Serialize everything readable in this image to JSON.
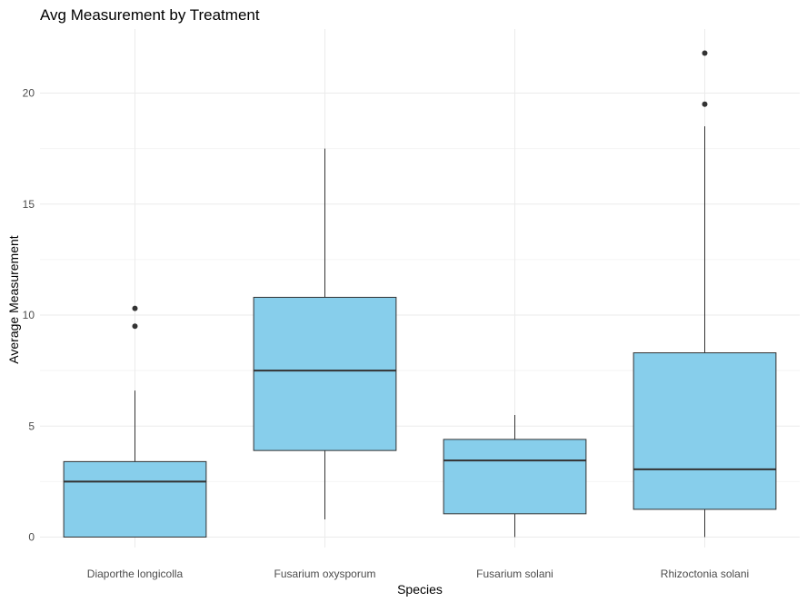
{
  "chart_data": {
    "type": "boxplot",
    "title": "Avg Measurement by Treatment",
    "xlabel": "Species",
    "ylabel": "Average Measurement",
    "ylim": [
      -1,
      23
    ],
    "yticks": [
      0,
      5,
      10,
      15,
      20
    ],
    "grid": true,
    "box_fill": "#87CEEB",
    "box_stroke": "#333333",
    "categories": [
      "Diaporthe longicolla",
      "Fusarium oxysporum",
      "Fusarium solani",
      "Rhizoctonia solani"
    ],
    "boxes": [
      {
        "category": "Diaporthe longicolla",
        "min": 0,
        "q1": 0,
        "median": 2.5,
        "q3": 3.4,
        "max": 6.6,
        "outliers": [
          9.5,
          10.3
        ]
      },
      {
        "category": "Fusarium oxysporum",
        "min": 0.8,
        "q1": 3.9,
        "median": 7.5,
        "q3": 10.8,
        "max": 17.5,
        "outliers": []
      },
      {
        "category": "Fusarium solani",
        "min": 0,
        "q1": 1.05,
        "median": 3.45,
        "q3": 4.4,
        "max": 5.5,
        "outliers": []
      },
      {
        "category": "Rhizoctonia solani",
        "min": 0,
        "q1": 1.25,
        "median": 3.05,
        "q3": 8.3,
        "max": 18.5,
        "outliers": [
          19.5,
          21.8
        ]
      }
    ]
  }
}
